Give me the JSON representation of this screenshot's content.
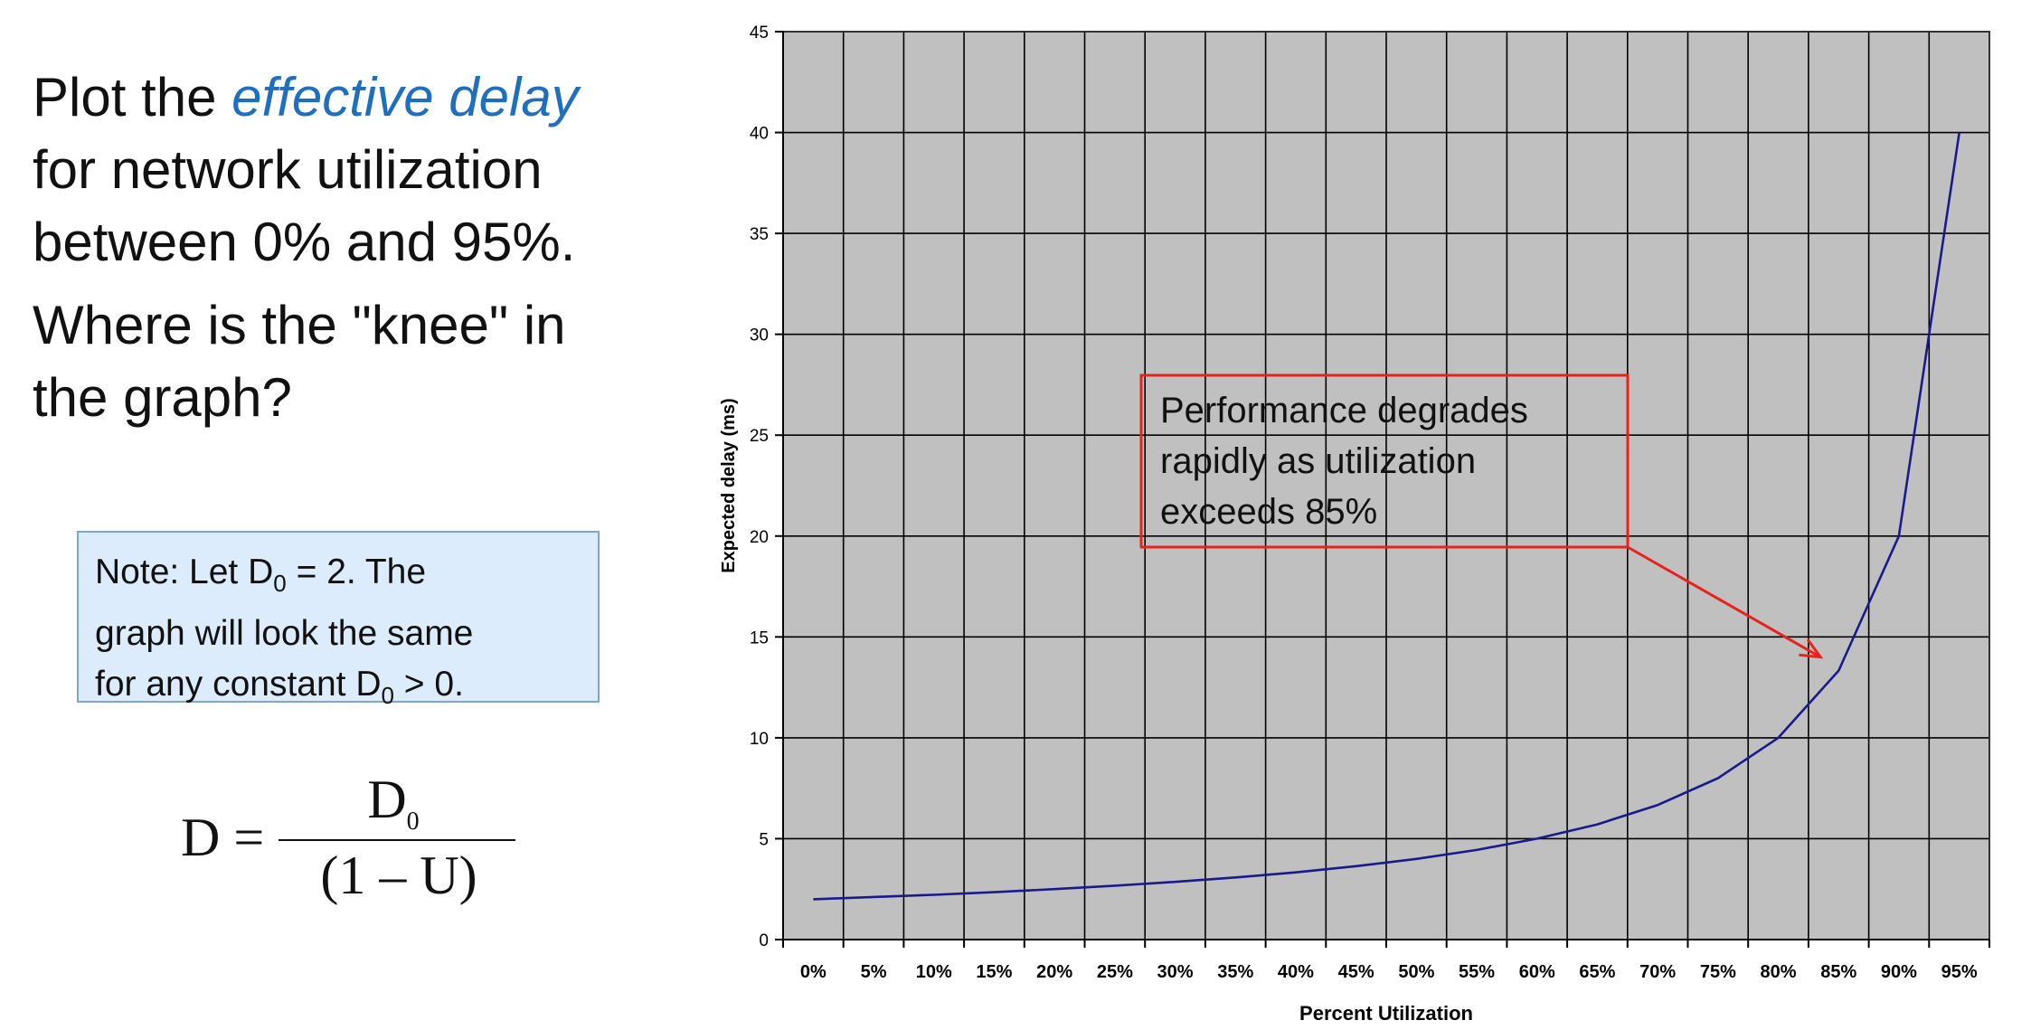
{
  "slide": {
    "heading_1": {
      "plain_before": "Plot the ",
      "emphasis": "effective delay",
      "plain_after_lines": [
        "for network utilization",
        "between 0% and 95%."
      ]
    },
    "heading_2_lines": [
      "Where is the \"knee\" in",
      "the graph?"
    ],
    "note": {
      "line1_before": "Note: Let D",
      "sub": "0",
      "line1_after": " = 2.  The",
      "line2": "graph will look the same",
      "line3_before": "for any constant D",
      "line3_sub": "0",
      "line3_after": " > 0."
    },
    "formula": {
      "lhs": "D =",
      "numerator": "D",
      "numerator_sub": "0",
      "denominator": "(1 – U)"
    }
  },
  "colors": {
    "plot_background": "#c0c0c0",
    "gridline": "#000000",
    "series_line": "#1a1a8c",
    "callout_border": "#e8231a",
    "arrow": "#e8231a",
    "text_emphasis": "#1f6fbf",
    "note_fill": "#dcecfc",
    "note_border": "#7da6d2"
  },
  "chart_data": {
    "type": "line",
    "xlabel": "Percent Utilization",
    "ylabel": "Expected delay (ms)",
    "ylim": [
      0,
      45
    ],
    "yticks": [
      0,
      5,
      10,
      15,
      20,
      25,
      30,
      35,
      40,
      45
    ],
    "grid": true,
    "legend": "none",
    "categories": [
      "0%",
      "5%",
      "10%",
      "15%",
      "20%",
      "25%",
      "30%",
      "35%",
      "40%",
      "45%",
      "50%",
      "55%",
      "60%",
      "65%",
      "70%",
      "75%",
      "80%",
      "85%",
      "90%",
      "95%"
    ],
    "series": [
      {
        "values": [
          2.0,
          2.11,
          2.22,
          2.35,
          2.5,
          2.67,
          2.86,
          3.08,
          3.33,
          3.64,
          4.0,
          4.44,
          5.0,
          5.71,
          6.67,
          8.0,
          10.0,
          13.33,
          20.0,
          40.0
        ]
      }
    ],
    "annotation": {
      "lines": [
        "Performance degrades",
        "rapidly as utilization",
        "exceeds 85%"
      ],
      "points_to": {
        "x": "85%",
        "y": 14
      }
    }
  }
}
